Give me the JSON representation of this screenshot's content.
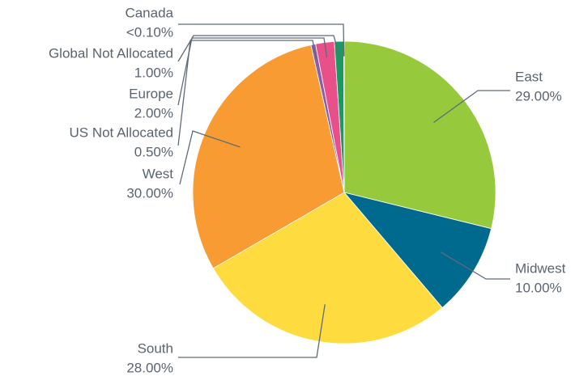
{
  "chart_data": {
    "type": "pie",
    "categories": [
      "East",
      "Midwest",
      "South",
      "West",
      "US Not Allocated",
      "Europe",
      "Global Not Allocated",
      "Canada"
    ],
    "values": [
      29,
      10,
      28,
      30,
      0.5,
      2,
      1,
      0.05
    ],
    "value_labels": [
      "29.00%",
      "10.00%",
      "28.00%",
      "30.00%",
      "0.50%",
      "2.00%",
      "1.00%",
      "<0.10%"
    ],
    "colors": [
      "#97c93d",
      "#006a8e",
      "#fedb3e",
      "#f89b33",
      "#8b5fa8",
      "#e8508a",
      "#1a9a60",
      "#0097b2"
    ]
  }
}
